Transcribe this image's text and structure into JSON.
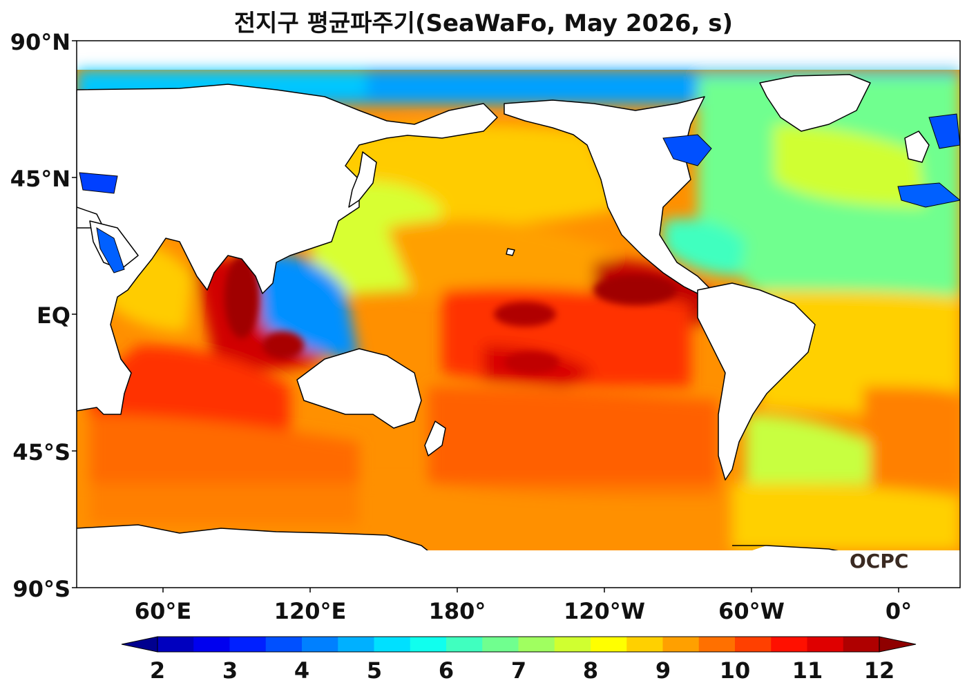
{
  "title": "전지구 평균파주기(SeaWaFo, May 2026, s)",
  "lat_ticks": [
    "90°N",
    "45°N",
    "EQ",
    "45°S",
    "90°S"
  ],
  "lon_ticks": [
    "60°E",
    "120°E",
    "180°",
    "120°W",
    "60°W",
    "0°"
  ],
  "colorbar": {
    "tick_labels": [
      "2",
      "3",
      "4",
      "5",
      "6",
      "7",
      "8",
      "9",
      "10",
      "11",
      "12"
    ],
    "min": 2,
    "max": 12,
    "step": 0.5,
    "extend": "both",
    "colors": [
      "#00008f",
      "#0000bf",
      "#0000ef",
      "#0020ff",
      "#0050ff",
      "#0080ff",
      "#00b0ff",
      "#00e0ff",
      "#10ffee",
      "#40ffbf",
      "#70ff8f",
      "#a0ff60",
      "#d0ff30",
      "#ffff00",
      "#ffd000",
      "#ffa000",
      "#ff7000",
      "#ff4000",
      "#ff1000",
      "#df0000",
      "#af0000"
    ],
    "under_color": "#00008f",
    "over_color": "#8f0000"
  },
  "logo": "OCPC"
}
